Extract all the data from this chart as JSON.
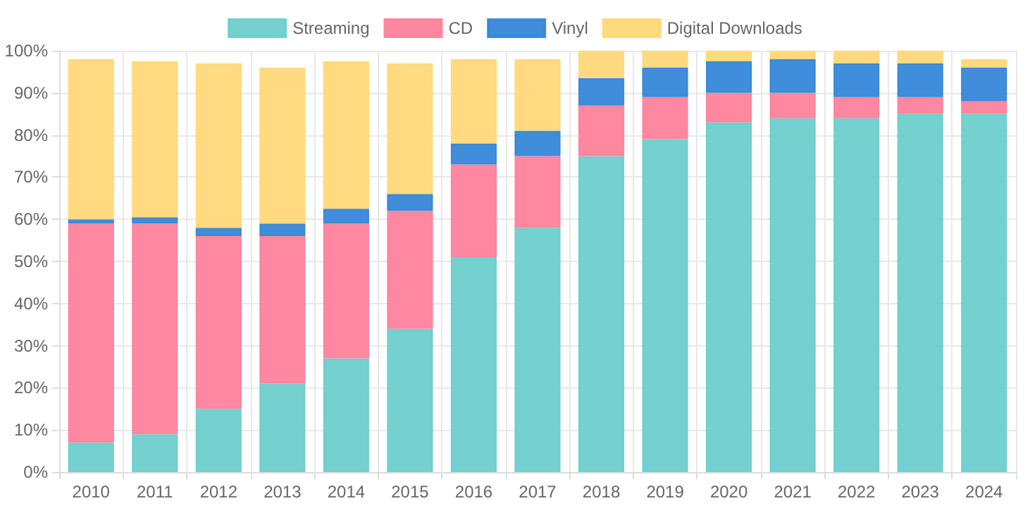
{
  "chart_data": {
    "type": "bar",
    "stacked": true,
    "categories": [
      "2010",
      "2011",
      "2012",
      "2013",
      "2014",
      "2015",
      "2016",
      "2017",
      "2018",
      "2019",
      "2020",
      "2021",
      "2022",
      "2023",
      "2024"
    ],
    "series": [
      {
        "name": "Streaming",
        "color": "#6ecdcd",
        "values": [
          7,
          9,
          15,
          21,
          27,
          34,
          51,
          58,
          75,
          79,
          83,
          84,
          84,
          85,
          85
        ]
      },
      {
        "name": "CD",
        "color": "#ff829c",
        "values": [
          52,
          50,
          41,
          35,
          32,
          28,
          22,
          17,
          12,
          10,
          7,
          6,
          5,
          4,
          3
        ]
      },
      {
        "name": "Vinyl",
        "color": "#3587d9",
        "values": [
          1,
          1.5,
          2,
          3,
          3.5,
          4,
          5,
          6,
          6.5,
          7,
          7.5,
          8,
          8,
          8,
          8
        ]
      },
      {
        "name": "Digital Downloads",
        "color": "#ffd879",
        "values": [
          38,
          37,
          39,
          37,
          35,
          31,
          20,
          17,
          6.5,
          4,
          2.5,
          2,
          3,
          3,
          2
        ]
      }
    ],
    "ylim": [
      0,
      100
    ],
    "yticks": [
      {
        "value": 0,
        "label": "0%"
      },
      {
        "value": 10,
        "label": "10%"
      },
      {
        "value": 20,
        "label": "20%"
      },
      {
        "value": 30,
        "label": "30%"
      },
      {
        "value": 40,
        "label": "40%"
      },
      {
        "value": 50,
        "label": "50%"
      },
      {
        "value": 60,
        "label": "60%"
      },
      {
        "value": 70,
        "label": "70%"
      },
      {
        "value": 80,
        "label": "80%"
      },
      {
        "value": 90,
        "label": "90%"
      },
      {
        "value": 100,
        "label": "100%"
      }
    ],
    "grid": true,
    "legend": "top"
  }
}
